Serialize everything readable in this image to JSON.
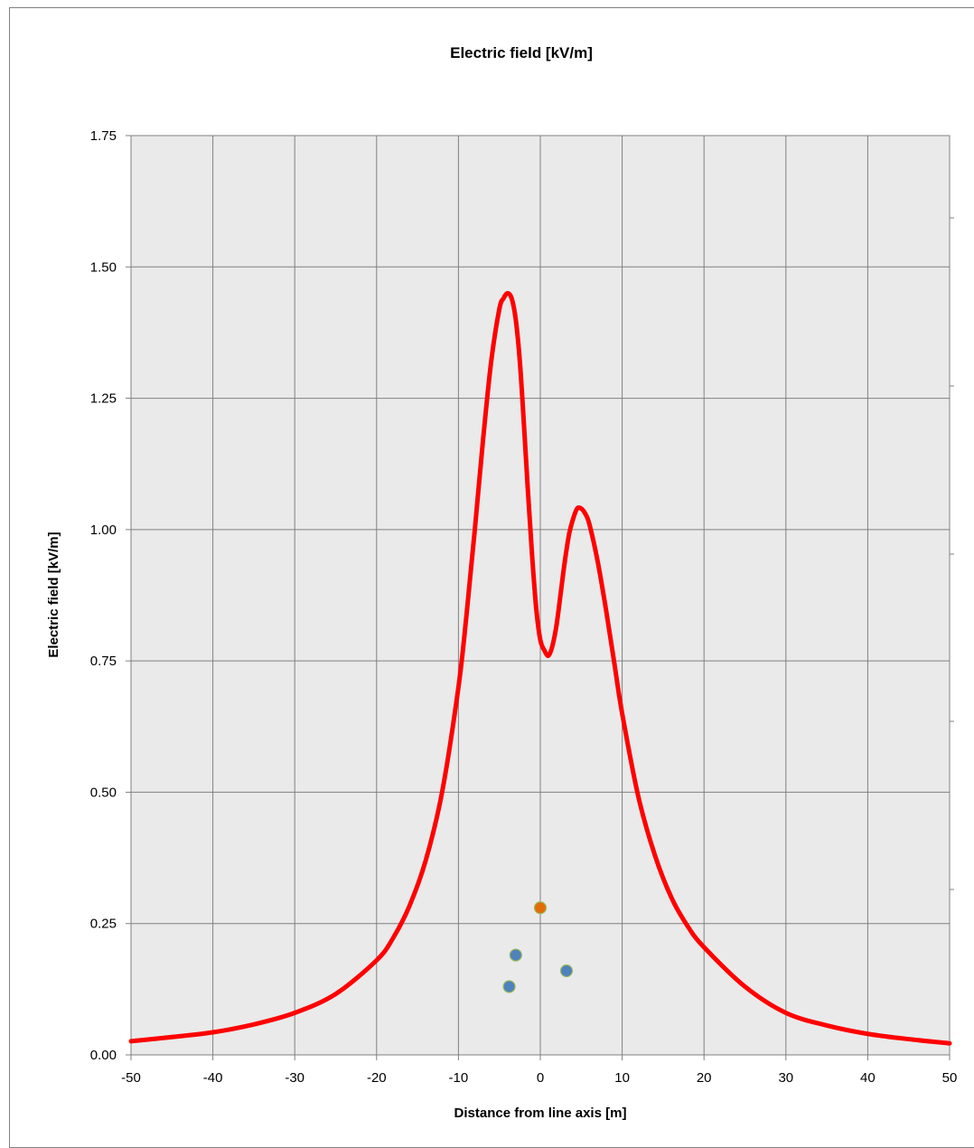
{
  "chart_data": {
    "type": "line",
    "title": "Electric field [kV/m]",
    "xlabel": "Distance from line axis [m]",
    "ylabel": "Electric field [kV/m]",
    "xlim": [
      -50,
      50
    ],
    "ylim": [
      0,
      1.75
    ],
    "x_ticks": [
      "-50",
      "-40",
      "-30",
      "-20",
      "-10",
      "0",
      "10",
      "20",
      "30",
      "40",
      "50"
    ],
    "y_ticks": [
      "0.00",
      "0.25",
      "0.50",
      "0.75",
      "1.00",
      "1.25",
      "1.50",
      "1.75"
    ],
    "grid": true,
    "series": [
      {
        "color": "#ff0000",
        "x": [
          -50,
          -45,
          -40,
          -35,
          -30,
          -25,
          -20,
          -18,
          -16,
          -14,
          -12,
          -10,
          -9,
          -8,
          -7,
          -6,
          -5,
          -4.5,
          -4,
          -3.5,
          -3,
          -2.5,
          -2,
          -1.5,
          -1,
          -0.5,
          0,
          0.5,
          1,
          1.5,
          2,
          2.5,
          3,
          3.5,
          4,
          4.5,
          5,
          5.5,
          6,
          7,
          8,
          9,
          10,
          12,
          14,
          16,
          18,
          20,
          25,
          30,
          35,
          40,
          45,
          50
        ],
        "y": [
          0.026,
          0.034,
          0.043,
          0.058,
          0.08,
          0.116,
          0.18,
          0.222,
          0.283,
          0.37,
          0.5,
          0.7,
          0.84,
          1.0,
          1.17,
          1.32,
          1.42,
          1.44,
          1.45,
          1.44,
          1.4,
          1.32,
          1.2,
          1.07,
          0.95,
          0.85,
          0.79,
          0.77,
          0.76,
          0.78,
          0.82,
          0.88,
          0.94,
          0.99,
          1.02,
          1.04,
          1.04,
          1.03,
          1.01,
          0.94,
          0.85,
          0.75,
          0.65,
          0.49,
          0.38,
          0.3,
          0.245,
          0.205,
          0.13,
          0.08,
          0.056,
          0.04,
          0.03,
          0.022
        ]
      }
    ],
    "markers": [
      {
        "x": 0,
        "y": 0.28,
        "color": "#e36c09"
      },
      {
        "x": -3,
        "y": 0.19,
        "color": "#4f81bd"
      },
      {
        "x": 3.2,
        "y": 0.16,
        "color": "#4f81bd"
      },
      {
        "x": -3.8,
        "y": 0.13,
        "color": "#4f81bd"
      }
    ],
    "plot_background": "#eaeaea"
  }
}
